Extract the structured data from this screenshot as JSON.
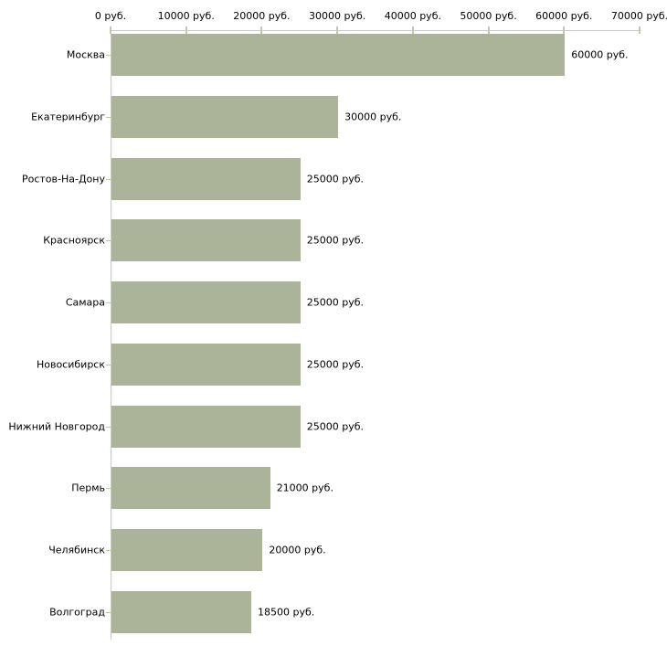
{
  "chart_data": {
    "type": "bar",
    "orientation": "horizontal",
    "title": "",
    "xlabel": "",
    "ylabel": "",
    "unit": "руб.",
    "categories": [
      "Москва",
      "Екатеринбург",
      "Ростов-На-Дону",
      "Красноярск",
      "Самара",
      "Новосибирск",
      "Нижний Новгород",
      "Пермь",
      "Челябинск",
      "Волгоград"
    ],
    "values": [
      60000,
      30000,
      25000,
      25000,
      25000,
      25000,
      25000,
      21000,
      20000,
      18500
    ],
    "value_labels": [
      "60000 руб.",
      "30000 руб.",
      "25000 руб.",
      "25000 руб.",
      "25000 руб.",
      "25000 руб.",
      "25000 руб.",
      "21000 руб.",
      "20000 руб.",
      "18500 руб."
    ],
    "x_ticks": [
      "0 руб.",
      "10000 руб.",
      "20000 руб.",
      "30000 руб.",
      "40000 руб.",
      "50000 руб.",
      "60000 руб.",
      "70000 руб."
    ],
    "x_tick_values": [
      0,
      10000,
      20000,
      30000,
      40000,
      50000,
      60000,
      70000
    ],
    "xlim": [
      0,
      70000
    ],
    "axis_position": "top",
    "grid": false,
    "legend": false,
    "colors": {
      "bar": "#abb399",
      "axis_line": "#c8c8c8",
      "tick": "#c8c89e",
      "text": "#000000",
      "background": "#ffffff"
    }
  }
}
